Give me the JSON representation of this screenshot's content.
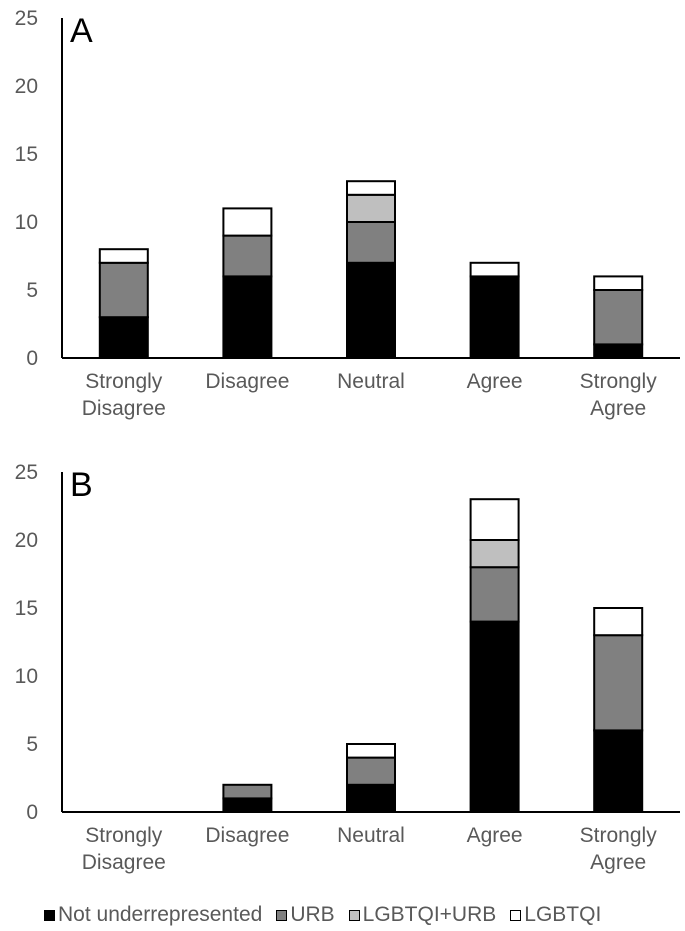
{
  "chart_data": [
    {
      "type": "bar",
      "stacked": true,
      "panel_label": "A",
      "categories": [
        "Strongly Disagree",
        "Disagree",
        "Neutral",
        "Agree",
        "Strongly Agree"
      ],
      "category_lines": [
        [
          "Strongly",
          "Disagree"
        ],
        [
          "Disagree"
        ],
        [
          "Neutral"
        ],
        [
          "Agree"
        ],
        [
          "Strongly",
          "Agree"
        ]
      ],
      "series": [
        {
          "name": "Not underrepresented",
          "color": "#000000",
          "values": [
            3,
            6,
            7,
            6,
            1
          ]
        },
        {
          "name": "URB",
          "color": "#808080",
          "values": [
            4,
            3,
            3,
            0,
            4
          ]
        },
        {
          "name": "LGBTQI+URB",
          "color": "#bfbfbf",
          "values": [
            0,
            0,
            2,
            0,
            0
          ]
        },
        {
          "name": "LGBTQI",
          "color": "#ffffff",
          "values": [
            1,
            2,
            1,
            1,
            1
          ]
        }
      ],
      "ylim": [
        0,
        25
      ],
      "yticks": [
        0,
        5,
        10,
        15,
        20,
        25
      ],
      "grid": false
    },
    {
      "type": "bar",
      "stacked": true,
      "panel_label": "B",
      "categories": [
        "Strongly Disagree",
        "Disagree",
        "Neutral",
        "Agree",
        "Strongly Agree"
      ],
      "category_lines": [
        [
          "Strongly",
          "Disagree"
        ],
        [
          "Disagree"
        ],
        [
          "Neutral"
        ],
        [
          "Agree"
        ],
        [
          "Strongly",
          "Agree"
        ]
      ],
      "series": [
        {
          "name": "Not underrepresented",
          "color": "#000000",
          "values": [
            0,
            1,
            2,
            14,
            6
          ]
        },
        {
          "name": "URB",
          "color": "#808080",
          "values": [
            0,
            1,
            2,
            4,
            7
          ]
        },
        {
          "name": "LGBTQI+URB",
          "color": "#bfbfbf",
          "values": [
            0,
            0,
            0,
            2,
            0
          ]
        },
        {
          "name": "LGBTQI",
          "color": "#ffffff",
          "values": [
            0,
            0,
            1,
            3,
            2
          ]
        }
      ],
      "ylim": [
        0,
        25
      ],
      "yticks": [
        0,
        5,
        10,
        15,
        20,
        25
      ],
      "grid": false
    }
  ],
  "legend": {
    "placement": "bottom",
    "items": [
      {
        "label": "Not underrepresented",
        "color": "#000000"
      },
      {
        "label": "URB",
        "color": "#808080"
      },
      {
        "label": "LGBTQI+URB",
        "color": "#bfbfbf"
      },
      {
        "label": "LGBTQI",
        "color": "#ffffff"
      }
    ]
  }
}
